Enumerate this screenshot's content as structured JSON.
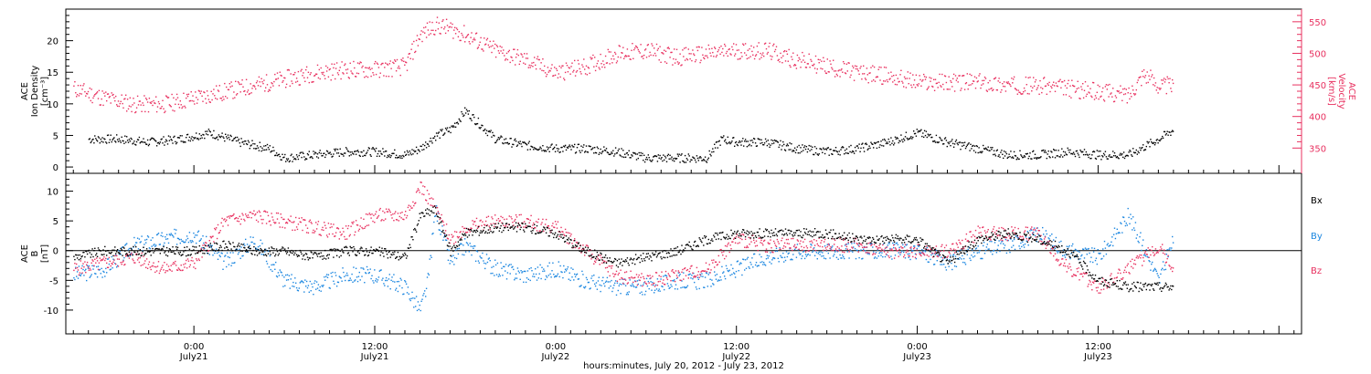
{
  "figure": {
    "xlabel": "hours:minutes, July 20, 2012 - July 23, 2012",
    "colors": {
      "black": "#000000",
      "pink": "#e8305f",
      "blue": "#1a86e0"
    }
  },
  "chart_data": [
    {
      "type": "scatter",
      "panel": "top",
      "ylabel_left": [
        "ACE",
        "Ion Density",
        "[cm⁻³]"
      ],
      "ylabel_right": [
        "ACE",
        "Velocity",
        "[km/s]"
      ],
      "ylim_left": [
        -1,
        25
      ],
      "ylim_right": [
        310,
        570
      ],
      "left_ticks": [
        "0",
        "5",
        "10",
        "15",
        "20"
      ],
      "right_ticks": [
        "350",
        "400",
        "450",
        "500",
        "550"
      ],
      "xlim_hours": [
        -8.5,
        73.5
      ],
      "x_tick_hours": [
        0,
        12,
        24,
        36,
        48,
        60
      ],
      "x_tick_labels": [
        [
          "0:00",
          "July21"
        ],
        [
          "12:00",
          "July21"
        ],
        [
          "0:00",
          "July22"
        ],
        [
          "12:00",
          "July22"
        ],
        [
          "0:00",
          "July23"
        ],
        [
          "12:00",
          "July23"
        ]
      ],
      "grid": false,
      "series": [
        {
          "name": "Ion Density",
          "axis": "left",
          "color": "#000000",
          "x_hours": [
            -7,
            -5,
            -3,
            -1,
            0,
            1,
            3,
            5,
            6,
            8,
            10,
            12,
            14,
            15,
            16,
            17,
            18,
            20,
            22,
            24,
            26,
            28,
            30,
            32,
            34,
            35,
            36,
            38,
            40,
            42,
            44,
            46,
            48,
            50,
            52,
            54,
            56,
            58,
            60,
            62,
            64,
            65
          ],
          "values": [
            4.5,
            4.5,
            4.0,
            4.5,
            5.0,
            5.5,
            4.0,
            3.0,
            1.5,
            2.0,
            2.5,
            2.5,
            2.0,
            3.0,
            5.0,
            6.0,
            9.0,
            4.5,
            3.5,
            3.0,
            3.0,
            2.5,
            1.5,
            1.5,
            1.5,
            4.5,
            4.0,
            4.0,
            3.0,
            2.5,
            3.0,
            4.0,
            5.5,
            4.0,
            3.0,
            2.0,
            2.0,
            2.5,
            2.0,
            2.0,
            4.5,
            6.0
          ]
        },
        {
          "name": "Velocity",
          "axis": "right",
          "color": "#e8305f",
          "x_hours": [
            -8,
            -6,
            -4,
            -2,
            0,
            2,
            4,
            6,
            8,
            10,
            12,
            14,
            15,
            16,
            17,
            18,
            20,
            22,
            24,
            26,
            28,
            30,
            32,
            34,
            36,
            38,
            40,
            42,
            44,
            46,
            48,
            50,
            52,
            54,
            56,
            58,
            60,
            62,
            63,
            64,
            65
          ],
          "values": [
            445,
            430,
            420,
            420,
            430,
            440,
            450,
            460,
            470,
            475,
            475,
            480,
            530,
            545,
            540,
            530,
            505,
            490,
            470,
            480,
            500,
            505,
            495,
            500,
            505,
            505,
            490,
            480,
            470,
            465,
            455,
            455,
            455,
            450,
            450,
            445,
            440,
            435,
            470,
            450,
            450
          ]
        }
      ]
    },
    {
      "type": "scatter",
      "panel": "bottom",
      "ylabel_left": [
        "ACE",
        "B",
        "[nT]"
      ],
      "ylim_left": [
        -14,
        13
      ],
      "left_ticks": [
        "-10",
        "-5",
        "0",
        "5",
        "10"
      ],
      "xlim_hours": [
        -8.5,
        73.5
      ],
      "zero_line": true,
      "grid": false,
      "legend": {
        "placement": "right",
        "entries": [
          "Bx",
          "By",
          "Bz"
        ]
      },
      "series": [
        {
          "name": "Bx",
          "color": "#000000",
          "x_hours": [
            -8,
            -6,
            -4,
            -2,
            0,
            2,
            4,
            6,
            8,
            10,
            12,
            14,
            15,
            16,
            17,
            18,
            20,
            22,
            24,
            26,
            28,
            30,
            32,
            34,
            36,
            38,
            40,
            42,
            44,
            46,
            48,
            50,
            52,
            54,
            56,
            58,
            60,
            62,
            64,
            65
          ],
          "values": [
            -1,
            0,
            0,
            0,
            0,
            1,
            0,
            0,
            -1,
            0,
            0,
            -1,
            6,
            7,
            0,
            3,
            4,
            4,
            3,
            0,
            -2,
            -1,
            0,
            2,
            3,
            3,
            3,
            3,
            2,
            2,
            2,
            -2,
            2,
            3,
            2,
            0,
            -5,
            -6,
            -6,
            -6
          ]
        },
        {
          "name": "By",
          "color": "#1a86e0",
          "x_hours": [
            -8,
            -6,
            -4,
            -2,
            0,
            2,
            4,
            6,
            8,
            10,
            12,
            14,
            15,
            15.5,
            16,
            17,
            18,
            20,
            22,
            24,
            26,
            28,
            30,
            32,
            34,
            36,
            38,
            40,
            42,
            44,
            46,
            48,
            50,
            52,
            54,
            56,
            58,
            60,
            62,
            64,
            65
          ],
          "values": [
            -4,
            -3,
            1,
            2,
            3,
            -2,
            2,
            -5,
            -6,
            -4,
            -4,
            -6,
            -10,
            -5,
            7,
            -2,
            1,
            -3,
            -4,
            -3,
            -5,
            -6,
            -6,
            -5,
            -5,
            -3,
            -1,
            0,
            0,
            0,
            0,
            0,
            -2,
            0,
            1,
            3,
            0,
            -1,
            6,
            -5,
            2
          ]
        },
        {
          "name": "Bz",
          "color": "#e8305f",
          "x_hours": [
            -8,
            -6,
            -4,
            -2,
            0,
            2,
            4,
            6,
            8,
            10,
            12,
            14,
            15,
            16,
            17,
            18,
            20,
            22,
            24,
            26,
            28,
            30,
            32,
            34,
            36,
            38,
            40,
            42,
            44,
            46,
            48,
            50,
            52,
            54,
            56,
            58,
            60,
            62,
            64,
            65
          ],
          "values": [
            -3,
            -2,
            -1,
            -3,
            -2,
            5,
            6,
            5,
            4,
            3,
            6,
            6,
            11,
            7,
            2,
            4,
            5,
            5,
            4,
            0,
            -4,
            -5,
            -4,
            -3,
            2,
            1,
            1,
            1,
            1,
            0,
            0,
            0,
            3,
            3,
            3,
            -3,
            -6,
            -3,
            1,
            -3
          ]
        }
      ]
    }
  ]
}
